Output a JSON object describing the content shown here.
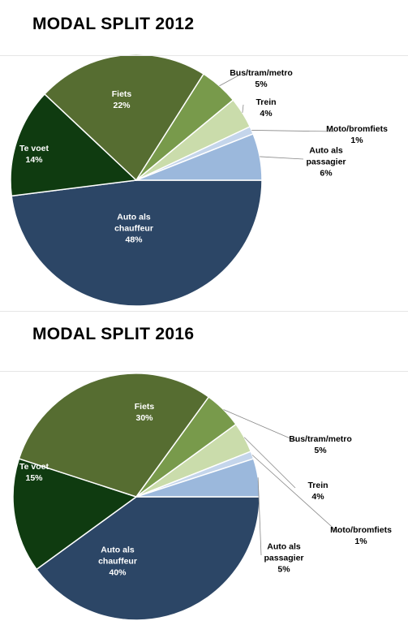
{
  "chart_data": [
    {
      "type": "pie",
      "title": "MODAL SPLIT 2012",
      "categories": [
        "Auto als chauffeur",
        "Te voet",
        "Fiets",
        "Bus/tram/metro",
        "Trein",
        "Moto/bromfiets",
        "Auto als passagier"
      ],
      "values": [
        48,
        14,
        22,
        5,
        4,
        1,
        6
      ],
      "value_labels": [
        "48%",
        "14%",
        "22%",
        "5%",
        "4%",
        "1%",
        "6%"
      ],
      "colors": [
        "#2c4666",
        "#0f3b10",
        "#566d31",
        "#789a4b",
        "#cadcab",
        "#c4d5eb",
        "#9bb8dc"
      ]
    },
    {
      "type": "pie",
      "title": "MODAL SPLIT 2016",
      "categories": [
        "Auto als chauffeur",
        "Te voet",
        "Fiets",
        "Bus/tram/metro",
        "Trein",
        "Moto/bromfiets",
        "Auto als passagier"
      ],
      "values": [
        40,
        15,
        30,
        5,
        4,
        1,
        5
      ],
      "value_labels": [
        "40%",
        "15%",
        "30%",
        "5%",
        "4%",
        "1%",
        "5%"
      ],
      "colors": [
        "#2c4666",
        "#0f3b10",
        "#566d31",
        "#789a4b",
        "#cadcab",
        "#c4d5eb",
        "#9bb8dc"
      ]
    }
  ]
}
